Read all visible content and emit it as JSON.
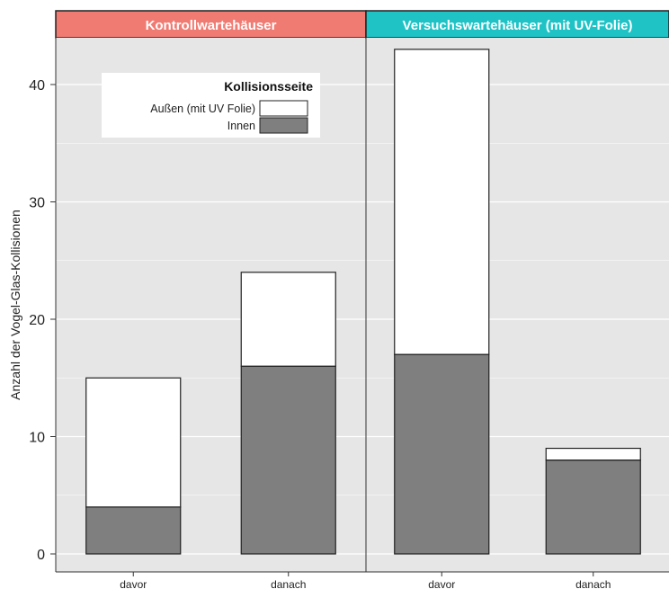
{
  "chart_data": {
    "type": "bar",
    "stacked": true,
    "ylabel": "Anzahl der Vogel-Glas-Kollisionen",
    "xlabel": "",
    "ylim": [
      0,
      45
    ],
    "yticks": [
      0,
      10,
      20,
      30,
      40
    ],
    "grid": true,
    "legend": {
      "title": "Kollisionsseite",
      "placement": "top-left",
      "entries": [
        {
          "name": "Außen (mit UV Folie)",
          "color": "#ffffff"
        },
        {
          "name": "Innen",
          "color": "#7f7f7f"
        }
      ]
    },
    "panels": [
      {
        "title": "Kontrollwartehäuser",
        "strip_color": "#f07b72",
        "categories": [
          "davor",
          "danach"
        ],
        "series": [
          {
            "name": "Innen",
            "values": [
              4,
              16
            ]
          },
          {
            "name": "Außen (mit UV Folie)",
            "values": [
              11,
              8
            ]
          }
        ]
      },
      {
        "title": "Versuchswartehäuser (mit UV-Folie)",
        "strip_color": "#1fc3c6",
        "categories": [
          "davor",
          "danach"
        ],
        "series": [
          {
            "name": "Innen",
            "values": [
              17,
              8
            ]
          },
          {
            "name": "Außen (mit UV Folie)",
            "values": [
              26,
              1
            ]
          }
        ]
      }
    ]
  },
  "colors": {
    "panel_background": "#e6e6e6",
    "grid": "#ffffff",
    "bar_outline": "#222222",
    "strip_border": "#222222"
  }
}
